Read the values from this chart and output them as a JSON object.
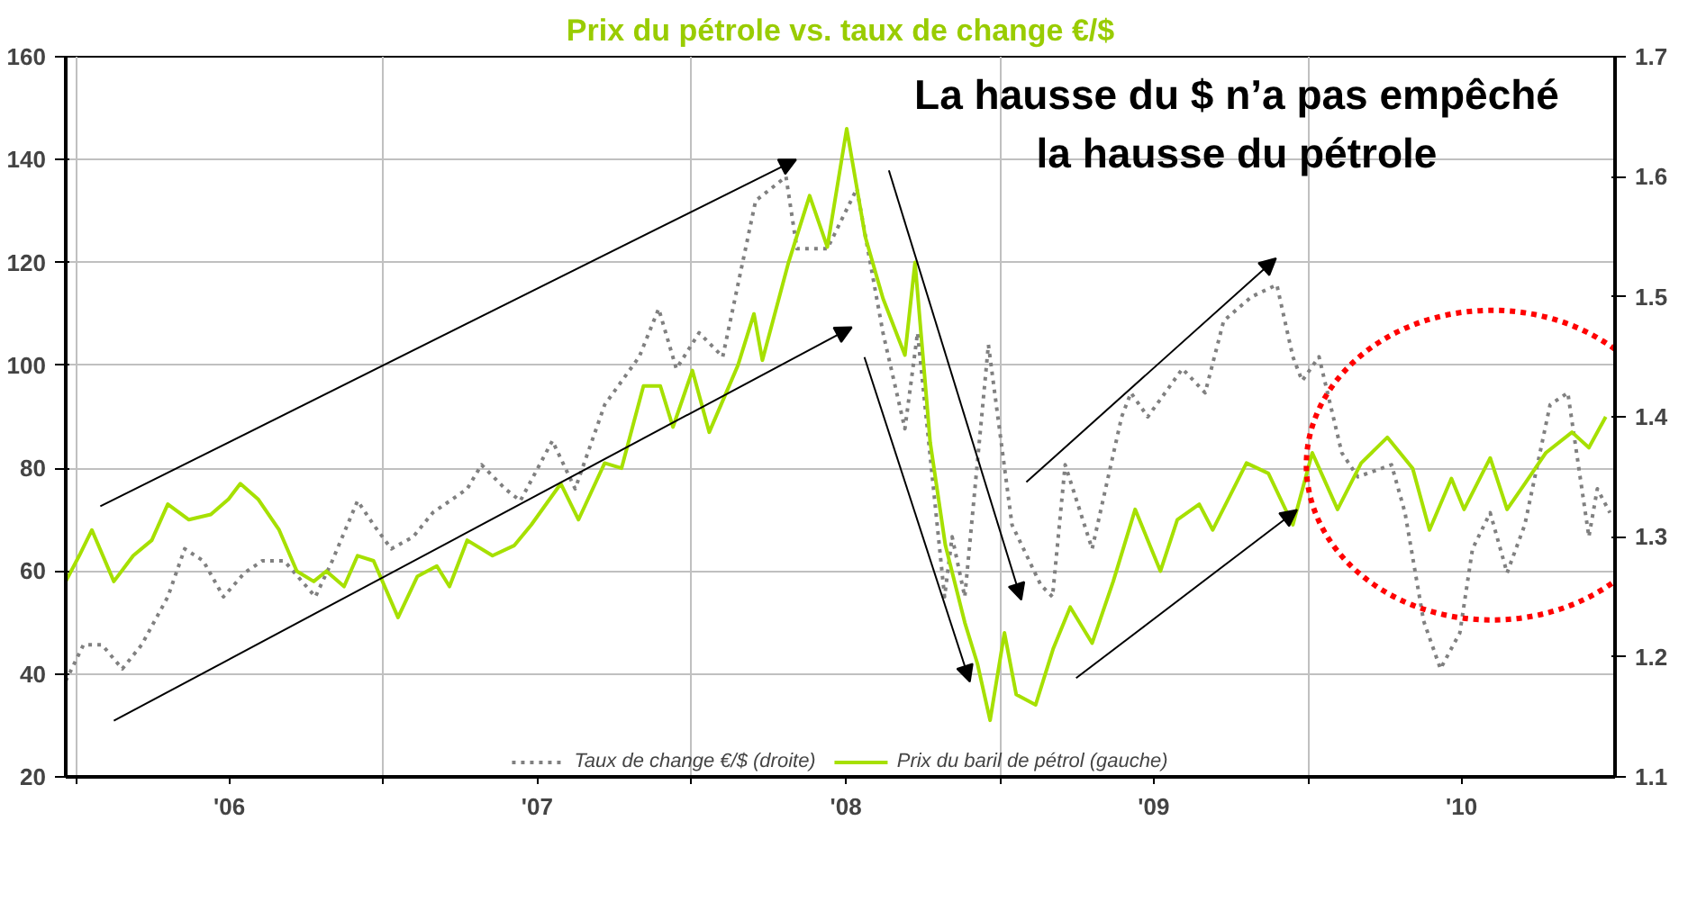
{
  "chart_data": {
    "type": "line",
    "title": "Prix du pétrole vs. taux de change €/$",
    "annotations": [
      "La hausse du $ n’a pas empêché\nla hausse du pétrole"
    ],
    "xlim": [
      "2005-12-20",
      "2010-12-31"
    ],
    "xticks": [
      {
        "value": "2006-01-01",
        "label": null
      },
      {
        "value": "2006-07-02",
        "label": "'06"
      },
      {
        "value": "2007-01-01",
        "label": null
      },
      {
        "value": "2007-07-02",
        "label": "'07"
      },
      {
        "value": "2008-01-01",
        "label": null
      },
      {
        "value": "2008-07-02",
        "label": "'08"
      },
      {
        "value": "2009-01-01",
        "label": null
      },
      {
        "value": "2009-07-02",
        "label": "'09"
      },
      {
        "value": "2010-01-01",
        "label": null
      },
      {
        "value": "2010-07-02",
        "label": "'10"
      }
    ],
    "ylim": [
      20,
      160
    ],
    "yticks": [
      20,
      40,
      60,
      80,
      100,
      120,
      140,
      160
    ],
    "y2lim": [
      1.1,
      1.7
    ],
    "y2ticks": [
      1.1,
      1.2,
      1.3,
      1.4,
      1.5,
      1.6,
      1.7
    ],
    "grid": true,
    "legend": "bottom",
    "series": [
      {
        "name": "Taux de change €/$ (droite)",
        "color": "#808080",
        "axis": "y2",
        "line_style": "dotted",
        "x": [
          "2005-12-20",
          "2006-01-10",
          "2006-02-01",
          "2006-02-25",
          "2006-03-20",
          "2006-04-20",
          "2006-05-10",
          "2006-06-01",
          "2006-06-25",
          "2006-07-20",
          "2006-08-10",
          "2006-09-05",
          "2006-10-12",
          "2006-11-01",
          "2006-12-01",
          "2006-12-20",
          "2007-01-10",
          "2007-02-05",
          "2007-02-28",
          "2007-04-10",
          "2007-04-27",
          "2007-05-25",
          "2007-06-12",
          "2007-07-20",
          "2007-08-16",
          "2007-09-20",
          "2007-10-31",
          "2007-11-23",
          "2007-12-14",
          "2008-01-10",
          "2008-02-07",
          "2008-03-17",
          "2008-04-22",
          "2008-05-05",
          "2008-06-10",
          "2008-07-15",
          "2008-08-15",
          "2008-09-10",
          "2008-09-25",
          "2008-10-27",
          "2008-11-05",
          "2008-11-20",
          "2008-12-18",
          "2009-01-15",
          "2009-02-18",
          "2009-03-04",
          "2009-03-19",
          "2009-04-20",
          "2009-05-25",
          "2009-06-05",
          "2009-06-25",
          "2009-08-05",
          "2009-09-01",
          "2009-09-23",
          "2009-10-26",
          "2009-11-25",
          "2009-12-14",
          "2009-12-25",
          "2010-01-14",
          "2010-02-10",
          "2010-03-01",
          "2010-04-10",
          "2010-04-26",
          "2010-05-18",
          "2010-06-07",
          "2010-06-30",
          "2010-07-15",
          "2010-08-05",
          "2010-08-25",
          "2010-09-15",
          "2010-10-15",
          "2010-11-05",
          "2010-11-30",
          "2010-12-10",
          "2010-12-25"
        ],
        "values": [
          1.18,
          1.21,
          1.21,
          1.19,
          1.21,
          1.25,
          1.29,
          1.28,
          1.25,
          1.27,
          1.28,
          1.28,
          1.25,
          1.28,
          1.33,
          1.31,
          1.29,
          1.3,
          1.32,
          1.34,
          1.36,
          1.34,
          1.33,
          1.38,
          1.34,
          1.41,
          1.45,
          1.49,
          1.44,
          1.47,
          1.45,
          1.58,
          1.6,
          1.54,
          1.54,
          1.59,
          1.47,
          1.39,
          1.47,
          1.25,
          1.3,
          1.25,
          1.46,
          1.31,
          1.26,
          1.25,
          1.36,
          1.29,
          1.4,
          1.42,
          1.4,
          1.44,
          1.42,
          1.48,
          1.5,
          1.51,
          1.45,
          1.43,
          1.45,
          1.37,
          1.35,
          1.36,
          1.32,
          1.23,
          1.19,
          1.22,
          1.29,
          1.32,
          1.27,
          1.31,
          1.41,
          1.42,
          1.3,
          1.34,
          1.32
        ]
      },
      {
        "name": "Prix du baril de pétrol (gauche)",
        "color": "#a6e000",
        "line_style": "solid",
        "x": [
          "2005-12-20",
          "2006-01-05",
          "2006-01-20",
          "2006-02-15",
          "2006-03-10",
          "2006-04-01",
          "2006-04-20",
          "2006-05-15",
          "2006-06-10",
          "2006-07-01",
          "2006-07-15",
          "2006-08-05",
          "2006-08-30",
          "2006-09-20",
          "2006-10-10",
          "2006-10-25",
          "2006-11-15",
          "2006-12-01",
          "2006-12-20",
          "2007-01-18",
          "2007-02-10",
          "2007-03-05",
          "2007-03-20",
          "2007-04-10",
          "2007-05-10",
          "2007-06-05",
          "2007-06-25",
          "2007-07-30",
          "2007-08-20",
          "2007-09-20",
          "2007-10-10",
          "2007-11-05",
          "2007-11-25",
          "2007-12-10",
          "2008-01-02",
          "2008-01-22",
          "2008-02-25",
          "2008-03-15",
          "2008-03-25",
          "2008-04-25",
          "2008-05-20",
          "2008-06-10",
          "2008-07-03",
          "2008-07-25",
          "2008-08-15",
          "2008-09-10",
          "2008-09-22",
          "2008-10-10",
          "2008-10-28",
          "2008-11-20",
          "2008-12-05",
          "2008-12-20",
          "2009-01-06",
          "2009-01-20",
          "2009-02-12",
          "2009-03-05",
          "2009-03-25",
          "2009-04-20",
          "2009-05-15",
          "2009-06-10",
          "2009-07-10",
          "2009-07-30",
          "2009-08-25",
          "2009-09-10",
          "2009-10-20",
          "2009-11-15",
          "2009-12-14",
          "2010-01-06",
          "2010-02-05",
          "2010-03-05",
          "2010-04-05",
          "2010-05-05",
          "2010-05-25",
          "2010-06-20",
          "2010-07-05",
          "2010-08-05",
          "2010-08-25",
          "2010-09-15",
          "2010-10-10",
          "2010-11-10",
          "2010-11-30",
          "2010-12-20"
        ],
        "values": [
          58,
          63,
          68,
          58,
          63,
          66,
          73,
          70,
          71,
          74,
          77,
          74,
          68,
          60,
          58,
          60,
          57,
          63,
          62,
          51,
          59,
          61,
          57,
          66,
          63,
          65,
          69,
          77,
          70,
          81,
          80,
          96,
          96,
          88,
          99,
          87,
          100,
          110,
          101,
          120,
          133,
          123,
          146,
          125,
          113,
          102,
          120,
          85,
          65,
          50,
          42,
          31,
          48,
          36,
          34,
          45,
          53,
          46,
          58,
          72,
          60,
          70,
          73,
          68,
          81,
          79,
          69,
          83,
          72,
          81,
          86,
          80,
          68,
          78,
          72,
          82,
          72,
          77,
          83,
          87,
          84,
          90
        ]
      }
    ]
  }
}
